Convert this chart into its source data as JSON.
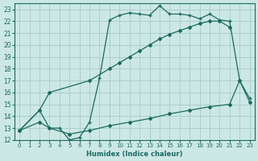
{
  "xlabel": "Humidex (Indice chaleur)",
  "bg_color": "#cce8e5",
  "grid_color": "#aacfcc",
  "line_color": "#1a6b60",
  "xlim": [
    -0.5,
    23.5
  ],
  "ylim": [
    12,
    23.5
  ],
  "xticks": [
    0,
    1,
    2,
    3,
    4,
    5,
    6,
    7,
    8,
    9,
    10,
    11,
    12,
    13,
    14,
    15,
    16,
    17,
    18,
    19,
    20,
    21,
    22,
    23
  ],
  "yticks": [
    12,
    13,
    14,
    15,
    16,
    17,
    18,
    19,
    20,
    21,
    22,
    23
  ],
  "line_wavy_x": [
    0,
    2,
    3,
    4,
    5,
    6,
    7,
    8,
    9,
    10,
    11,
    12,
    13,
    14,
    15,
    16,
    17,
    18,
    19,
    20,
    21,
    22,
    23
  ],
  "line_wavy_y": [
    12.8,
    14.5,
    13.0,
    13.0,
    12.0,
    12.2,
    13.5,
    17.2,
    22.1,
    22.5,
    22.7,
    22.6,
    22.5,
    23.3,
    22.6,
    22.6,
    22.5,
    22.2,
    22.6,
    22.1,
    22.0,
    17.0,
    15.5
  ],
  "line_upper_x": [
    0,
    2,
    3,
    7,
    9,
    10,
    11,
    12,
    13,
    14,
    15,
    16,
    17,
    18,
    19,
    20,
    21
  ],
  "line_upper_y": [
    12.8,
    14.5,
    16.0,
    17.0,
    18.0,
    18.5,
    19.0,
    19.5,
    20.0,
    20.5,
    20.9,
    21.2,
    21.5,
    21.8,
    22.0,
    22.0,
    21.5
  ],
  "line_lower_x": [
    0,
    2,
    3,
    5,
    7,
    9,
    11,
    13,
    15,
    17,
    19,
    21,
    22,
    23
  ],
  "line_lower_y": [
    12.8,
    13.5,
    13.0,
    12.5,
    12.8,
    13.2,
    13.5,
    13.8,
    14.2,
    14.5,
    14.8,
    15.0,
    17.0,
    15.2
  ]
}
